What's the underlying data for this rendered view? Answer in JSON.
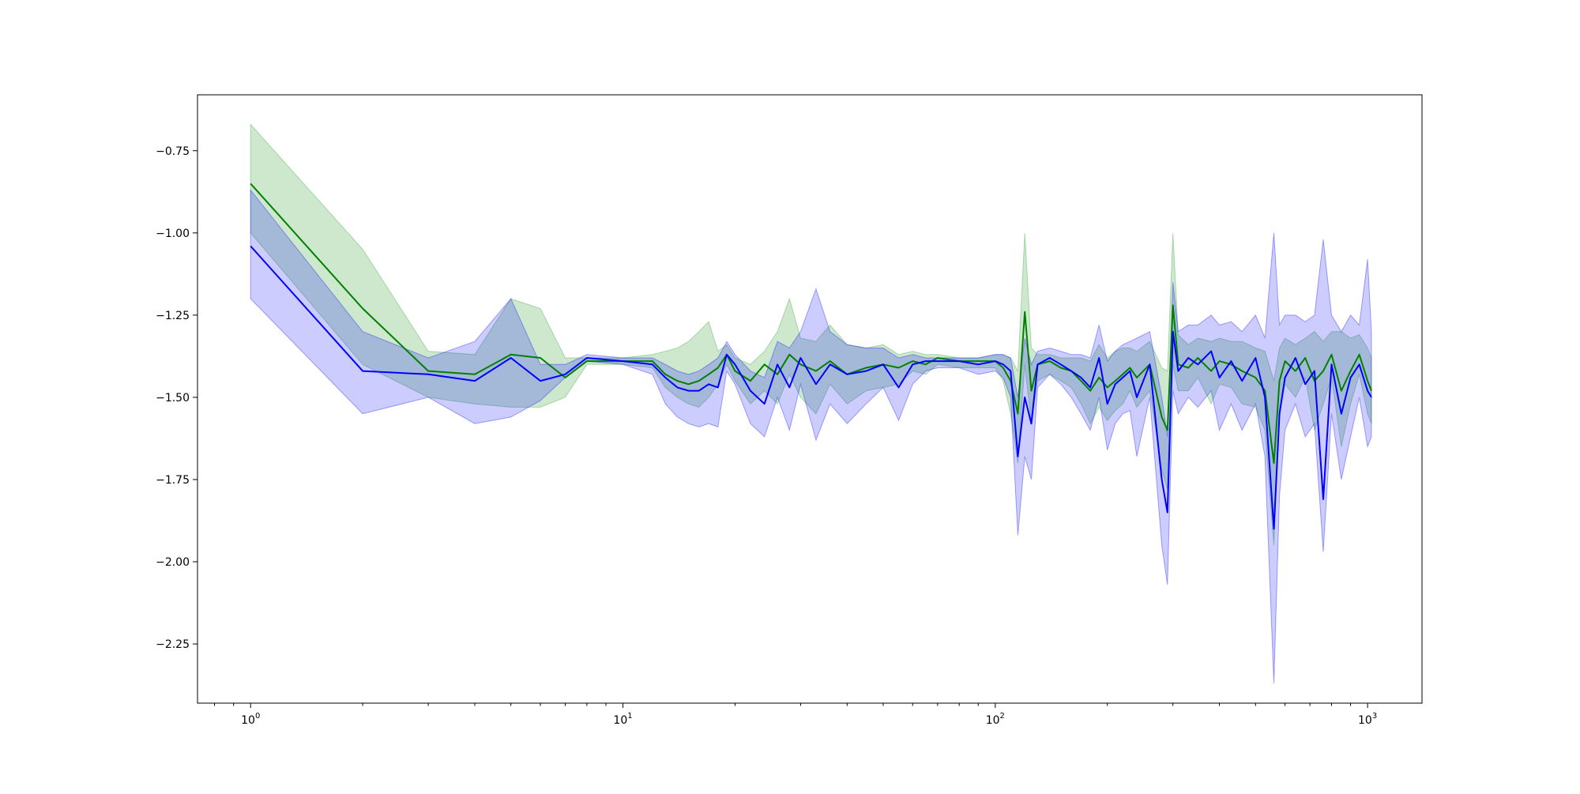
{
  "chart_data": {
    "type": "line",
    "title": "",
    "xlabel": "",
    "ylabel": "",
    "xscale": "log",
    "xlim": [
      0.72,
      1400
    ],
    "ylim": [
      -2.43,
      -0.58
    ],
    "grid": false,
    "legend": "none",
    "x_ticks": [
      {
        "value": 1,
        "base": "10",
        "exp": "0"
      },
      {
        "value": 10,
        "base": "10",
        "exp": "1"
      },
      {
        "value": 100,
        "base": "10",
        "exp": "2"
      },
      {
        "value": 1000,
        "base": "10",
        "exp": "3"
      }
    ],
    "y_ticks": [
      {
        "value": -0.75,
        "label": "−0.75"
      },
      {
        "value": -1.0,
        "label": "−1.00"
      },
      {
        "value": -1.25,
        "label": "−1.25"
      },
      {
        "value": -1.5,
        "label": "−1.50"
      },
      {
        "value": -1.75,
        "label": "−1.75"
      },
      {
        "value": -2.0,
        "label": "−2.00"
      },
      {
        "value": -2.25,
        "label": "−2.25"
      }
    ],
    "series": [
      {
        "color": "#008000",
        "band_color": "#2ca02c",
        "band_opacity": 0.24,
        "x": [
          1,
          2,
          3,
          4,
          5,
          6,
          7,
          8,
          10,
          12,
          13,
          14,
          15,
          16,
          17,
          18,
          19,
          20,
          22,
          24,
          26,
          28,
          30,
          33,
          36,
          40,
          45,
          50,
          55,
          60,
          65,
          70,
          80,
          90,
          100,
          105,
          110,
          115,
          120,
          125,
          130,
          140,
          150,
          160,
          170,
          180,
          190,
          200,
          210,
          220,
          230,
          240,
          260,
          280,
          290,
          300,
          310,
          330,
          350,
          380,
          400,
          430,
          460,
          500,
          530,
          560,
          580,
          600,
          640,
          680,
          720,
          760,
          800,
          850,
          900,
          950,
          1000,
          1024
        ],
        "y": [
          -0.85,
          -1.23,
          -1.42,
          -1.43,
          -1.37,
          -1.38,
          -1.44,
          -1.39,
          -1.39,
          -1.39,
          -1.43,
          -1.45,
          -1.46,
          -1.45,
          -1.43,
          -1.41,
          -1.37,
          -1.42,
          -1.45,
          -1.4,
          -1.43,
          -1.37,
          -1.4,
          -1.42,
          -1.39,
          -1.43,
          -1.41,
          -1.4,
          -1.41,
          -1.39,
          -1.4,
          -1.38,
          -1.39,
          -1.39,
          -1.39,
          -1.41,
          -1.45,
          -1.55,
          -1.24,
          -1.48,
          -1.4,
          -1.39,
          -1.41,
          -1.42,
          -1.45,
          -1.48,
          -1.44,
          -1.47,
          -1.45,
          -1.43,
          -1.41,
          -1.44,
          -1.4,
          -1.56,
          -1.6,
          -1.22,
          -1.4,
          -1.41,
          -1.38,
          -1.42,
          -1.39,
          -1.4,
          -1.42,
          -1.44,
          -1.48,
          -1.7,
          -1.45,
          -1.39,
          -1.42,
          -1.38,
          -1.45,
          -1.42,
          -1.37,
          -1.48,
          -1.42,
          -1.37,
          -1.45,
          -1.48
        ],
        "lower": [
          -1.0,
          -1.4,
          -1.5,
          -1.52,
          -1.53,
          -1.53,
          -1.5,
          -1.4,
          -1.4,
          -1.41,
          -1.47,
          -1.5,
          -1.52,
          -1.53,
          -1.5,
          -1.46,
          -1.4,
          -1.45,
          -1.52,
          -1.48,
          -1.52,
          -1.43,
          -1.5,
          -1.55,
          -1.46,
          -1.52,
          -1.48,
          -1.47,
          -1.46,
          -1.42,
          -1.43,
          -1.4,
          -1.41,
          -1.41,
          -1.41,
          -1.45,
          -1.55,
          -1.7,
          -1.4,
          -1.58,
          -1.45,
          -1.43,
          -1.45,
          -1.47,
          -1.52,
          -1.58,
          -1.53,
          -1.57,
          -1.54,
          -1.52,
          -1.48,
          -1.53,
          -1.48,
          -1.72,
          -1.78,
          -1.4,
          -1.48,
          -1.48,
          -1.44,
          -1.52,
          -1.46,
          -1.47,
          -1.52,
          -1.53,
          -1.6,
          -1.95,
          -1.55,
          -1.46,
          -1.5,
          -1.44,
          -1.6,
          -1.52,
          -1.44,
          -1.65,
          -1.52,
          -1.43,
          -1.55,
          -1.58
        ],
        "upper": [
          -0.67,
          -1.05,
          -1.36,
          -1.37,
          -1.2,
          -1.23,
          -1.38,
          -1.38,
          -1.38,
          -1.37,
          -1.36,
          -1.35,
          -1.33,
          -1.3,
          -1.27,
          -1.36,
          -1.34,
          -1.38,
          -1.4,
          -1.36,
          -1.3,
          -1.2,
          -1.32,
          -1.33,
          -1.28,
          -1.34,
          -1.35,
          -1.34,
          -1.37,
          -1.36,
          -1.37,
          -1.37,
          -1.38,
          -1.38,
          -1.37,
          -1.37,
          -1.38,
          -1.42,
          -1.0,
          -1.35,
          -1.37,
          -1.37,
          -1.38,
          -1.38,
          -1.38,
          -1.39,
          -1.34,
          -1.38,
          -1.36,
          -1.35,
          -1.35,
          -1.36,
          -1.33,
          -1.41,
          -1.42,
          -1.0,
          -1.31,
          -1.34,
          -1.32,
          -1.33,
          -1.32,
          -1.33,
          -1.33,
          -1.35,
          -1.36,
          -1.45,
          -1.35,
          -1.32,
          -1.34,
          -1.32,
          -1.3,
          -1.33,
          -1.3,
          -1.3,
          -1.32,
          -1.31,
          -1.35,
          -1.38
        ]
      },
      {
        "color": "#0000ff",
        "band_color": "#0000ff",
        "band_opacity": 0.2,
        "x": [
          1,
          2,
          3,
          4,
          5,
          6,
          7,
          8,
          10,
          12,
          13,
          14,
          15,
          16,
          17,
          18,
          19,
          20,
          22,
          24,
          26,
          28,
          30,
          33,
          36,
          40,
          45,
          50,
          55,
          60,
          65,
          70,
          80,
          90,
          100,
          105,
          110,
          115,
          120,
          125,
          130,
          140,
          150,
          160,
          170,
          180,
          190,
          200,
          210,
          220,
          230,
          240,
          260,
          280,
          290,
          300,
          310,
          330,
          350,
          380,
          400,
          430,
          460,
          500,
          530,
          560,
          580,
          600,
          640,
          680,
          720,
          760,
          800,
          850,
          900,
          950,
          1000,
          1024
        ],
        "y": [
          -1.04,
          -1.42,
          -1.43,
          -1.45,
          -1.38,
          -1.45,
          -1.43,
          -1.38,
          -1.39,
          -1.4,
          -1.44,
          -1.47,
          -1.48,
          -1.48,
          -1.46,
          -1.47,
          -1.37,
          -1.4,
          -1.48,
          -1.52,
          -1.4,
          -1.47,
          -1.38,
          -1.46,
          -1.4,
          -1.43,
          -1.42,
          -1.4,
          -1.47,
          -1.4,
          -1.39,
          -1.39,
          -1.39,
          -1.4,
          -1.39,
          -1.4,
          -1.42,
          -1.68,
          -1.5,
          -1.58,
          -1.4,
          -1.38,
          -1.4,
          -1.42,
          -1.44,
          -1.47,
          -1.38,
          -1.52,
          -1.46,
          -1.44,
          -1.42,
          -1.5,
          -1.4,
          -1.75,
          -1.85,
          -1.3,
          -1.42,
          -1.38,
          -1.4,
          -1.36,
          -1.44,
          -1.39,
          -1.45,
          -1.38,
          -1.5,
          -1.9,
          -1.55,
          -1.44,
          -1.38,
          -1.46,
          -1.42,
          -1.81,
          -1.4,
          -1.55,
          -1.44,
          -1.4,
          -1.48,
          -1.5
        ],
        "lower": [
          -1.2,
          -1.55,
          -1.5,
          -1.58,
          -1.56,
          -1.51,
          -1.44,
          -1.39,
          -1.4,
          -1.43,
          -1.52,
          -1.56,
          -1.58,
          -1.59,
          -1.58,
          -1.59,
          -1.42,
          -1.46,
          -1.58,
          -1.62,
          -1.5,
          -1.6,
          -1.46,
          -1.63,
          -1.52,
          -1.58,
          -1.52,
          -1.47,
          -1.57,
          -1.46,
          -1.42,
          -1.41,
          -1.41,
          -1.43,
          -1.42,
          -1.44,
          -1.5,
          -1.92,
          -1.68,
          -1.75,
          -1.47,
          -1.43,
          -1.46,
          -1.5,
          -1.55,
          -1.6,
          -1.5,
          -1.66,
          -1.58,
          -1.55,
          -1.54,
          -1.68,
          -1.5,
          -1.95,
          -2.07,
          -1.48,
          -1.55,
          -1.5,
          -1.53,
          -1.48,
          -1.6,
          -1.52,
          -1.6,
          -1.52,
          -1.68,
          -2.37,
          -1.8,
          -1.6,
          -1.52,
          -1.62,
          -1.58,
          -1.97,
          -1.55,
          -1.75,
          -1.62,
          -1.5,
          -1.65,
          -1.62
        ],
        "upper": [
          -0.87,
          -1.3,
          -1.38,
          -1.33,
          -1.2,
          -1.4,
          -1.4,
          -1.37,
          -1.38,
          -1.38,
          -1.4,
          -1.42,
          -1.43,
          -1.42,
          -1.4,
          -1.38,
          -1.33,
          -1.37,
          -1.42,
          -1.44,
          -1.33,
          -1.35,
          -1.3,
          -1.17,
          -1.3,
          -1.34,
          -1.35,
          -1.35,
          -1.38,
          -1.37,
          -1.38,
          -1.38,
          -1.38,
          -1.38,
          -1.37,
          -1.37,
          -1.38,
          -1.5,
          -1.32,
          -1.4,
          -1.36,
          -1.35,
          -1.36,
          -1.37,
          -1.37,
          -1.38,
          -1.28,
          -1.39,
          -1.36,
          -1.34,
          -1.33,
          -1.32,
          -1.3,
          -1.5,
          -1.62,
          -1.15,
          -1.3,
          -1.28,
          -1.28,
          -1.25,
          -1.28,
          -1.27,
          -1.3,
          -1.25,
          -1.32,
          -1.0,
          -1.28,
          -1.25,
          -1.25,
          -1.27,
          -1.25,
          -1.02,
          -1.25,
          -1.3,
          -1.25,
          -1.28,
          -1.08,
          -1.3
        ]
      }
    ]
  }
}
